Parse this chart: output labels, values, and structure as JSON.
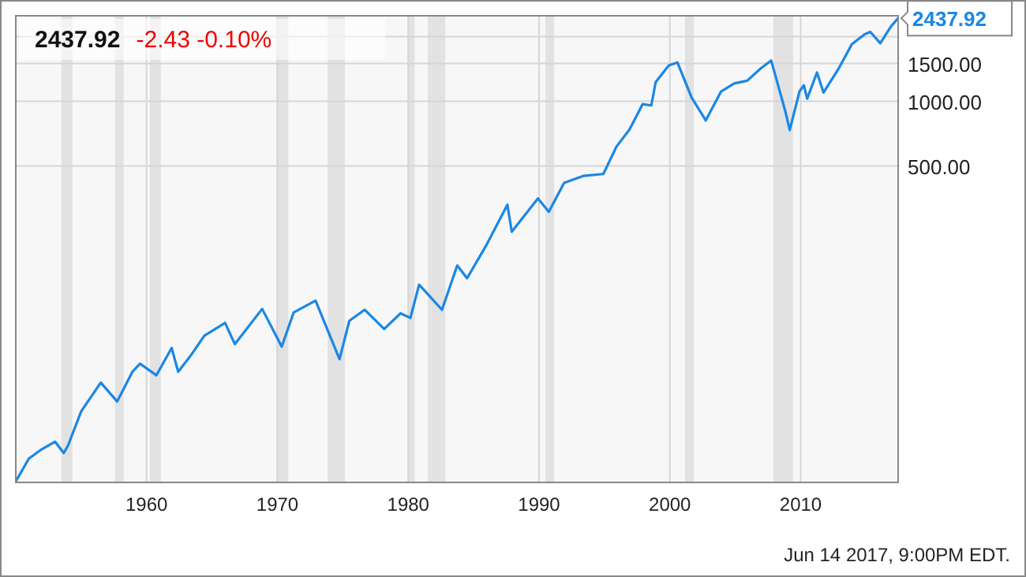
{
  "chart_data": {
    "type": "line",
    "title": "2437.92",
    "subtitle": "-2.43  -0.10%",
    "x": [
      "1950-01",
      "1951-01",
      "1952-01",
      "1953-01",
      "1953-09",
      "1954-01",
      "1955-01",
      "1956-07",
      "1957-10",
      "1958-12",
      "1959-07",
      "1960-10",
      "1961-12",
      "1962-06",
      "1963-06",
      "1964-06",
      "1966-01",
      "1966-10",
      "1968-11",
      "1970-05",
      "1971-04",
      "1972-12",
      "1974-10",
      "1975-07",
      "1976-09",
      "1978-03",
      "1979-06",
      "1980-03",
      "1980-11",
      "1982-08",
      "1983-10",
      "1984-07",
      "1985-12",
      "1987-08",
      "1987-12",
      "1989-12",
      "1990-10",
      "1991-12",
      "1993-06",
      "1994-12",
      "1995-12",
      "1996-12",
      "1997-12",
      "1998-08",
      "1998-12",
      "1999-12",
      "2000-08",
      "2001-09",
      "2002-10",
      "2003-12",
      "2004-12",
      "2005-12",
      "2006-12",
      "2007-10",
      "2008-11",
      "2009-03",
      "2009-12",
      "2010-04",
      "2010-07",
      "2011-04",
      "2011-10",
      "2012-12",
      "2013-12",
      "2014-12",
      "2015-05",
      "2016-02",
      "2016-12",
      "2017-06-14"
    ],
    "series": [
      {
        "color": "#1a87e5",
        "values": [
          17,
          21.7,
          24,
          26,
          23,
          25,
          36,
          49,
          40,
          55,
          60,
          53,
          71,
          55,
          66,
          81,
          93,
          74,
          108,
          72,
          104,
          118,
          63,
          95,
          107,
          87,
          103,
          98,
          140,
          107,
          172,
          150,
          211,
          330,
          247,
          353,
          306,
          417,
          450,
          459,
          615,
          740,
          970,
          957,
          1229,
          1469,
          1517,
          1040,
          815,
          1112,
          1212,
          1248,
          1418,
          1549,
          896,
          735,
          1115,
          1187,
          1030,
          1363,
          1099,
          1426,
          1848,
          2059,
          2107,
          1864,
          2239,
          2437.92
        ]
      }
    ],
    "xlim": [
      "1950-01",
      "2017-06-14"
    ],
    "xticks": [
      "1960",
      "1970",
      "1980",
      "1990",
      "2000",
      "2010"
    ],
    "ylim": [
      16.8,
      2504
    ],
    "log": true,
    "yticks": [
      {
        "value": 500,
        "label": "500.00"
      },
      {
        "value": 1000,
        "label": "1000.00"
      },
      {
        "value": 1500,
        "label": "1500.00"
      },
      {
        "value": 2000,
        "label": null
      }
    ],
    "grid": true,
    "marker": "none",
    "line_style": "solid",
    "bands": [
      {
        "axis": "x",
        "from": "1953-07",
        "to": "1954-05",
        "color": "#e2e2e2"
      },
      {
        "axis": "x",
        "from": "1957-08",
        "to": "1958-04",
        "color": "#e2e2e2"
      },
      {
        "axis": "x",
        "from": "1960-04",
        "to": "1961-02",
        "color": "#e2e2e2"
      },
      {
        "axis": "x",
        "from": "1969-12",
        "to": "1970-11",
        "color": "#e2e2e2"
      },
      {
        "axis": "x",
        "from": "1973-11",
        "to": "1975-03",
        "color": "#e2e2e2"
      },
      {
        "axis": "x",
        "from": "1980-01",
        "to": "1980-07",
        "color": "#e2e2e2"
      },
      {
        "axis": "x",
        "from": "1981-07",
        "to": "1982-11",
        "color": "#e2e2e2"
      },
      {
        "axis": "x",
        "from": "1990-07",
        "to": "1991-03",
        "color": "#e2e2e2"
      },
      {
        "axis": "x",
        "from": "2001-03",
        "to": "2001-11",
        "color": "#e2e2e2"
      },
      {
        "axis": "x",
        "from": "2007-12",
        "to": "2009-06",
        "color": "#e2e2e2"
      }
    ],
    "annotations": [
      {
        "text": "2437.92",
        "x": "2017-06-14",
        "y": 2437.92
      },
      "Jun 14 2017, 9:00PM EDT."
    ]
  }
}
